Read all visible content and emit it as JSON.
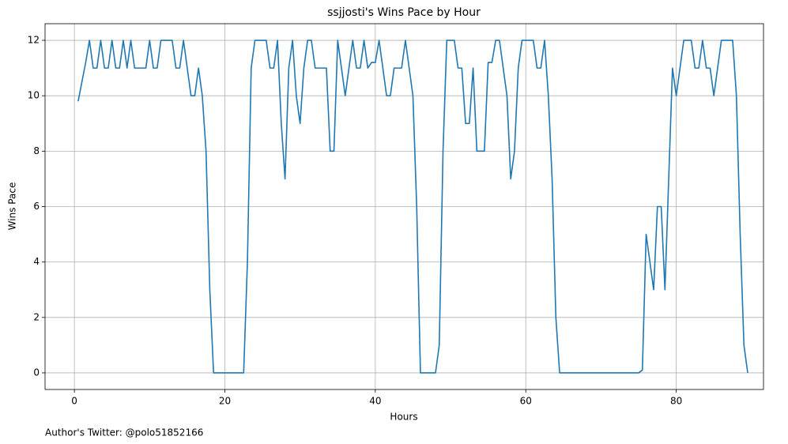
{
  "chart_data": {
    "type": "line",
    "title": "ssjjosti's Wins Pace by Hour",
    "x_label": "Hours",
    "y_label": "Wins Pace",
    "footnote": "Author's Twitter: @polo51852166",
    "x": [
      0.5,
      1,
      1.5,
      2,
      2.5,
      3,
      3.5,
      4,
      4.5,
      5,
      5.5,
      6,
      6.5,
      7,
      7.5,
      8,
      8.5,
      9,
      9.5,
      10,
      10.5,
      11,
      11.5,
      12,
      12.5,
      13,
      13.5,
      14,
      14.5,
      15,
      15.5,
      16,
      16.5,
      17,
      17.5,
      18,
      18.5,
      19,
      19.5,
      20,
      20.5,
      21,
      21.5,
      22,
      22.5,
      23,
      23.5,
      24,
      24.5,
      25,
      25.5,
      26,
      26.5,
      27,
      27.5,
      28,
      28.5,
      29,
      29.5,
      30,
      30.5,
      31,
      31.5,
      32,
      32.5,
      33,
      33.5,
      34,
      34.5,
      35,
      35.5,
      36,
      36.5,
      37,
      37.5,
      38,
      38.5,
      39,
      39.5,
      40,
      40.5,
      41,
      41.5,
      42,
      42.5,
      43,
      43.5,
      44,
      44.5,
      45,
      45.5,
      46,
      46.5,
      47,
      47.5,
      48,
      48.5,
      49,
      49.5,
      50,
      50.5,
      51,
      51.5,
      52,
      52.5,
      53,
      53.5,
      54,
      54.5,
      55,
      55.5,
      56,
      56.5,
      57,
      57.5,
      58,
      58.5,
      59,
      59.5,
      60,
      60.5,
      61,
      61.5,
      62,
      62.5,
      63,
      63.5,
      64,
      64.5,
      65,
      65.5,
      66,
      66.5,
      67,
      67.5,
      68,
      68.5,
      69,
      69.5,
      70,
      70.5,
      71,
      71.5,
      72,
      72.5,
      73,
      73.5,
      74,
      74.5,
      75,
      75.5,
      76,
      76.5,
      77,
      77.5,
      78,
      78.5,
      79,
      79.5,
      80,
      80.5,
      81,
      81.5,
      82,
      82.5,
      83,
      83.5,
      84,
      84.5,
      85,
      85.5,
      86,
      86.5,
      87,
      87.5,
      88,
      88.5,
      89,
      89.5
    ],
    "series": [
      {
        "name": "Wins Pace",
        "color": "#1f77b4",
        "values": [
          9.8,
          10.5,
          11.2,
          12,
          11,
          11,
          12,
          11,
          11,
          12,
          11,
          11,
          12,
          11,
          12,
          11,
          11,
          11,
          11,
          12,
          11,
          11,
          12,
          12,
          12,
          12,
          11,
          11,
          12,
          11,
          10,
          10,
          11,
          10,
          8,
          3,
          0,
          0,
          0,
          0,
          0,
          0,
          0,
          0,
          0,
          4,
          11,
          12,
          12,
          12,
          12,
          11,
          11,
          12,
          9,
          7,
          11,
          12,
          10,
          9,
          11,
          12,
          12,
          11,
          11,
          11,
          11,
          8,
          8,
          12,
          11,
          10,
          11,
          12,
          11,
          11,
          12,
          11,
          11.2,
          11.2,
          12,
          11,
          10,
          10,
          11,
          11,
          11,
          12,
          11,
          10,
          6,
          0,
          0,
          0,
          0,
          0,
          1,
          8,
          12,
          12,
          12,
          11,
          11,
          9,
          9,
          11,
          8,
          8,
          8,
          11.2,
          11.2,
          12,
          12,
          11,
          10,
          7,
          8,
          11,
          12,
          12,
          12,
          12,
          11,
          11,
          12,
          10,
          7,
          2,
          0,
          0,
          0,
          0,
          0,
          0,
          0,
          0,
          0,
          0,
          0,
          0,
          0,
          0,
          0,
          0,
          0,
          0,
          0,
          0,
          0,
          0,
          0.1,
          5,
          4,
          3,
          6,
          6,
          3,
          7,
          11,
          10,
          11,
          12,
          12,
          12,
          11,
          11,
          12,
          11,
          11,
          10,
          11,
          12,
          12,
          12,
          12,
          10,
          5,
          1,
          0
        ]
      }
    ],
    "xlim": [
      -3.9,
      91.6
    ],
    "ylim": [
      -0.6,
      12.6
    ],
    "xticks": [
      0,
      20,
      40,
      60,
      80
    ],
    "yticks": [
      0,
      2,
      4,
      6,
      8,
      10,
      12
    ],
    "grid": true
  }
}
